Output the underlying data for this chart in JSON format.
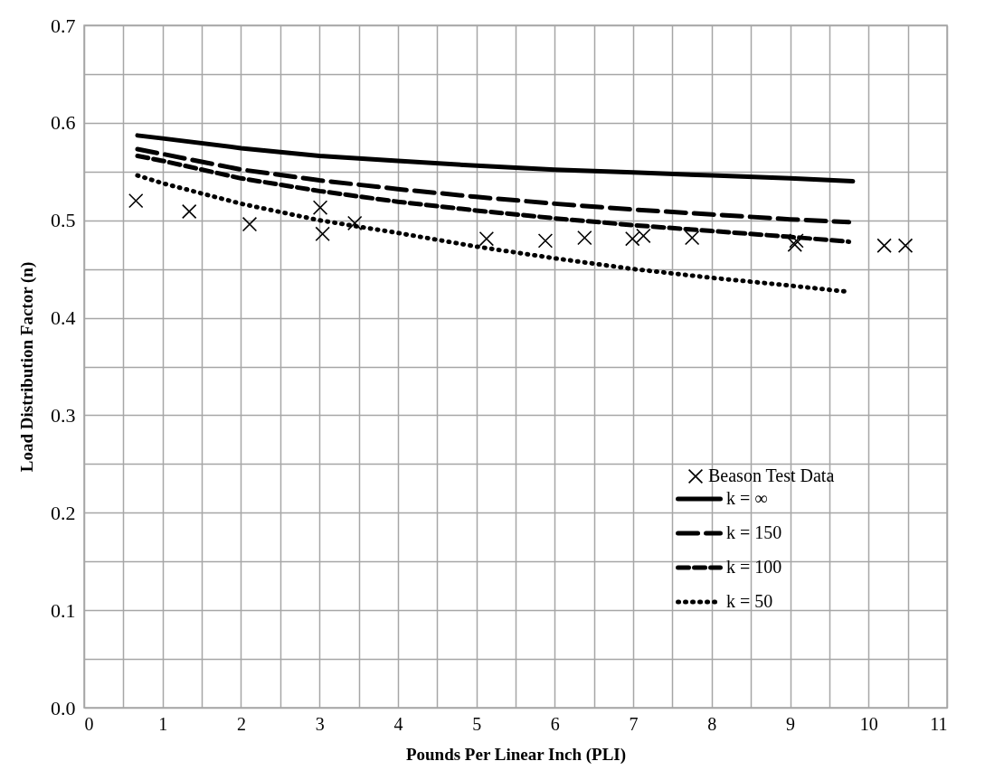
{
  "chart_data": {
    "type": "line",
    "xlabel": "Pounds Per Linear Inch (PLI)",
    "ylabel": "Load Distribution Factor (n)",
    "xlim": [
      0,
      11
    ],
    "xticks": [
      0,
      {
        "value": 0.5,
        "label": null
      },
      1,
      {
        "value": 1.5,
        "label": null
      },
      2,
      {
        "value": 2.5,
        "label": null
      },
      3,
      {
        "value": 3.5,
        "label": null
      },
      4,
      {
        "value": 4.5,
        "label": null
      },
      5,
      {
        "value": 5.5,
        "label": null
      },
      6,
      {
        "value": 6.5,
        "label": null
      },
      7,
      {
        "value": 7.5,
        "label": null
      },
      8,
      {
        "value": 8.5,
        "label": null
      },
      9,
      {
        "value": 9.5,
        "label": null
      },
      10,
      {
        "value": 10.5,
        "label": null
      },
      11
    ],
    "ylim": [
      0,
      0.7
    ],
    "yticks": [
      {
        "value": 0,
        "label": "0.0"
      },
      {
        "value": 0.05,
        "label": null
      },
      0.1,
      {
        "value": 0.15,
        "label": null
      },
      0.2,
      {
        "value": 0.25,
        "label": null
      },
      0.3,
      {
        "value": 0.35,
        "label": null
      },
      0.4,
      {
        "value": 0.45,
        "label": null
      },
      0.5,
      {
        "value": 0.55,
        "label": null
      },
      0.6,
      {
        "value": 0.65,
        "label": null
      },
      0.7
    ],
    "grid": true,
    "legend": "bottom right",
    "series": [
      {
        "name": "Beason Test Data",
        "type": "scatter",
        "marker": "cross",
        "color": "#000000",
        "x": [
          0.66,
          1.34,
          2.11,
          3.01,
          3.04,
          3.45,
          5.13,
          5.88,
          6.38,
          6.99,
          7.13,
          7.75,
          9.08,
          9.06,
          10.2,
          10.47
        ],
        "values": [
          0.52,
          0.509,
          0.496,
          0.513,
          0.486,
          0.497,
          0.481,
          0.479,
          0.482,
          0.481,
          0.484,
          0.482,
          0.479,
          0.475,
          0.474,
          0.474
        ]
      },
      {
        "name": "k = ∞",
        "line_style": "solid",
        "marker": "none",
        "color": "#000000",
        "x": [
          0.68,
          1,
          2,
          3,
          4,
          5,
          6,
          7,
          8,
          9,
          9.8
        ],
        "values": [
          0.587,
          0.584,
          0.574,
          0.566,
          0.561,
          0.556,
          0.552,
          0.549,
          0.546,
          0.543,
          0.54
        ]
      },
      {
        "name": "k = 150",
        "line_style": "dashed",
        "marker": "none",
        "color": "#000000",
        "x": [
          0.68,
          1,
          2,
          3,
          4,
          5,
          6,
          7,
          8,
          9,
          9.75
        ],
        "values": [
          0.573,
          0.568,
          0.552,
          0.541,
          0.532,
          0.524,
          0.517,
          0.511,
          0.506,
          0.501,
          0.498
        ]
      },
      {
        "name": "k = 100",
        "line_style": "dashed",
        "marker": "none",
        "color": "#000000",
        "x": [
          0.68,
          1,
          2,
          3,
          4,
          5,
          6,
          7,
          8,
          9,
          9.75
        ],
        "values": [
          0.566,
          0.561,
          0.543,
          0.53,
          0.519,
          0.51,
          0.502,
          0.495,
          0.489,
          0.483,
          0.478
        ]
      },
      {
        "name": "k = 50",
        "line_style": "dotted",
        "marker": "none",
        "color": "#000000",
        "x": [
          0.68,
          1,
          2,
          3,
          4,
          5,
          6,
          7,
          8,
          9,
          9.7
        ],
        "values": [
          0.546,
          0.538,
          0.517,
          0.5,
          0.487,
          0.473,
          0.461,
          0.45,
          0.441,
          0.433,
          0.427
        ]
      }
    ]
  }
}
